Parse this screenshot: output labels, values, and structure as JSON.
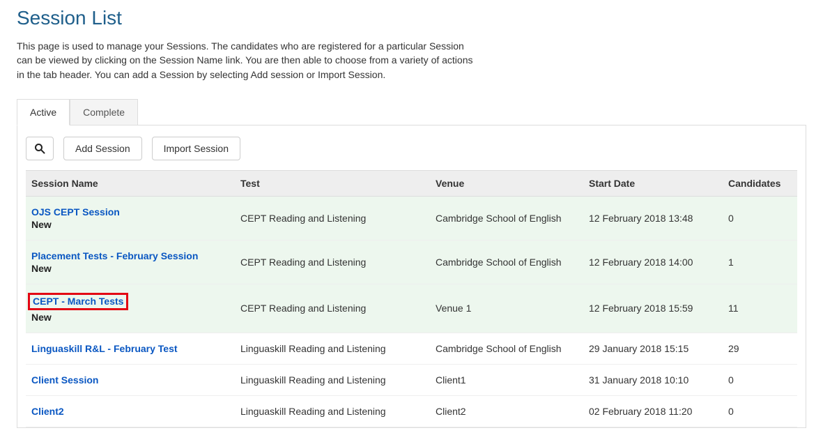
{
  "page": {
    "title": "Session List",
    "description": "This page is used to manage your Sessions. The candidates who are registered for a particular Session can be viewed by clicking on the Session Name link. You are then able to choose from a variety of actions in the tab header. You can add a Session by selecting Add session or Import Session."
  },
  "tabs": {
    "active": "Active",
    "complete": "Complete"
  },
  "toolbar": {
    "add_session": "Add Session",
    "import_session": "Import Session"
  },
  "table": {
    "headers": {
      "session_name": "Session Name",
      "test": "Test",
      "venue": "Venue",
      "start_date": "Start Date",
      "candidates": "Candidates"
    },
    "rows": [
      {
        "name": "OJS CEPT Session",
        "status": "New",
        "test": "CEPT Reading and Listening",
        "venue": "Cambridge School of English",
        "start_date": "12 February 2018 13:48",
        "candidates": "0",
        "tinted": true,
        "highlighted": false
      },
      {
        "name": "Placement Tests - February Session",
        "status": "New",
        "test": "CEPT Reading and Listening",
        "venue": "Cambridge School of English",
        "start_date": "12 February 2018 14:00",
        "candidates": "1",
        "tinted": true,
        "highlighted": false
      },
      {
        "name": "CEPT - March Tests",
        "status": "New",
        "test": "CEPT Reading and Listening",
        "venue": "Venue 1",
        "start_date": "12 February 2018 15:59",
        "candidates": "11",
        "tinted": true,
        "highlighted": true
      },
      {
        "name": "Linguaskill R&L - February Test",
        "status": "",
        "test": "Linguaskill Reading and Listening",
        "venue": "Cambridge School of English",
        "start_date": "29 January 2018 15:15",
        "candidates": "29",
        "tinted": false,
        "highlighted": false
      },
      {
        "name": "Client Session",
        "status": "",
        "test": "Linguaskill Reading and Listening",
        "venue": "Client1",
        "start_date": "31 January 2018 10:10",
        "candidates": "0",
        "tinted": false,
        "highlighted": false
      },
      {
        "name": "Client2",
        "status": "",
        "test": "Linguaskill Reading and Listening",
        "venue": "Client2",
        "start_date": "02 February 2018 11:20",
        "candidates": "0",
        "tinted": false,
        "highlighted": false
      }
    ]
  }
}
